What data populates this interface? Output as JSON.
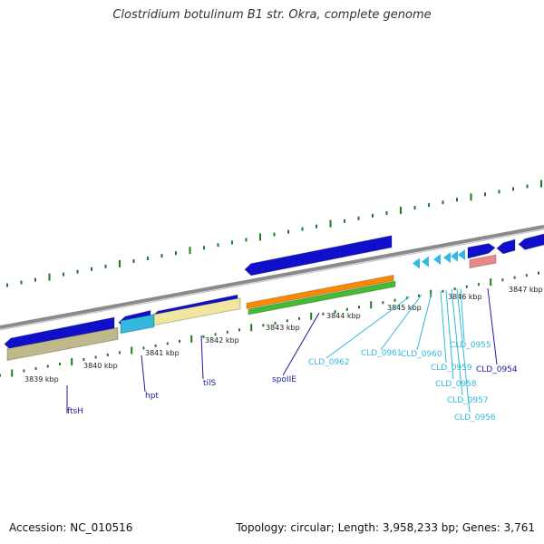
{
  "title": "Clostridium botulinum B1 str. Okra, complete genome",
  "footer": {
    "accession": "Accession: NC_010516",
    "topology": "Topology: circular; Length: 3,958,233 bp; Genes: 3,761"
  },
  "colors": {
    "backbone": "#8a8a8a",
    "tick": "#1f7a1f",
    "scale_label": "#222222",
    "gene_label_dark": "#1a1aa0",
    "gene_label_light": "#33b8e0",
    "blue_gene": "#1010cc",
    "cyan_gene": "#33b8e0",
    "khaki_gene": "#bfb88a",
    "yellow_gene": "#f0e6a0",
    "orange_gene": "#ff8800",
    "green_gene": "#44bb33",
    "pink_gene": "#e88888"
  },
  "scale_labels": [
    "3839 kbp",
    "3840 kbp",
    "3841 kbp",
    "3842 kbp",
    "3843 kbp",
    "3844 kbp",
    "3845 kbp",
    "3846 kbp",
    "3847 kbp"
  ],
  "gene_labels": [
    {
      "name": "ftsH",
      "style": "dark"
    },
    {
      "name": "hpt",
      "style": "dark"
    },
    {
      "name": "tilS",
      "style": "dark"
    },
    {
      "name": "spoIIE",
      "style": "dark"
    },
    {
      "name": "CLD_0962",
      "style": "light"
    },
    {
      "name": "CLD_0961",
      "style": "light"
    },
    {
      "name": "CLD_0960",
      "style": "light"
    },
    {
      "name": "CLD_0959",
      "style": "light"
    },
    {
      "name": "CLD_0958",
      "style": "light"
    },
    {
      "name": "CLD_0957",
      "style": "light"
    },
    {
      "name": "CLD_0956",
      "style": "light"
    },
    {
      "name": "CLD_0955",
      "style": "light"
    },
    {
      "name": "CLD_0954",
      "style": "dark"
    }
  ]
}
